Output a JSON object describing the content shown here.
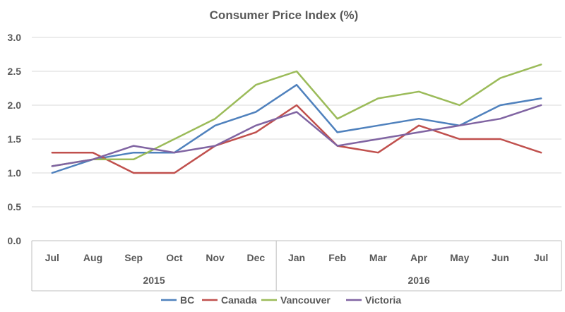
{
  "chart_data": {
    "type": "line",
    "title": "Consumer Price Index (%)",
    "categories": [
      "Jul",
      "Aug",
      "Sep",
      "Oct",
      "Nov",
      "Dec",
      "Jan",
      "Feb",
      "Mar",
      "Apr",
      "May",
      "Jun",
      "Jul"
    ],
    "year_groups": [
      {
        "label": "2015",
        "start": 0,
        "end": 5
      },
      {
        "label": "2016",
        "start": 6,
        "end": 12
      }
    ],
    "ylim": [
      0,
      3
    ],
    "yticks": [
      "0.0",
      "0.5",
      "1.0",
      "1.5",
      "2.0",
      "2.5",
      "3.0"
    ],
    "ytick_values": [
      0,
      0.5,
      1.0,
      1.5,
      2.0,
      2.5,
      3.0
    ],
    "grid": true,
    "legend_position": "bottom",
    "series": [
      {
        "name": "BC",
        "color": "#4f81bd",
        "values": [
          1.0,
          1.2,
          1.3,
          1.3,
          1.7,
          1.9,
          2.3,
          1.6,
          1.7,
          1.8,
          1.7,
          2.0,
          2.1
        ]
      },
      {
        "name": "Canada",
        "color": "#c0504d",
        "values": [
          1.3,
          1.3,
          1.0,
          1.0,
          1.4,
          1.6,
          2.0,
          1.4,
          1.3,
          1.7,
          1.5,
          1.5,
          1.3
        ]
      },
      {
        "name": "Vancouver",
        "color": "#9bbb59",
        "values": [
          1.1,
          1.2,
          1.2,
          1.5,
          1.8,
          2.3,
          2.5,
          1.8,
          2.1,
          2.2,
          2.0,
          2.4,
          2.6
        ]
      },
      {
        "name": "Victoria",
        "color": "#8064a2",
        "values": [
          1.1,
          1.2,
          1.4,
          1.3,
          1.4,
          1.7,
          1.9,
          1.4,
          1.5,
          1.6,
          1.7,
          1.8,
          2.0
        ]
      }
    ]
  }
}
